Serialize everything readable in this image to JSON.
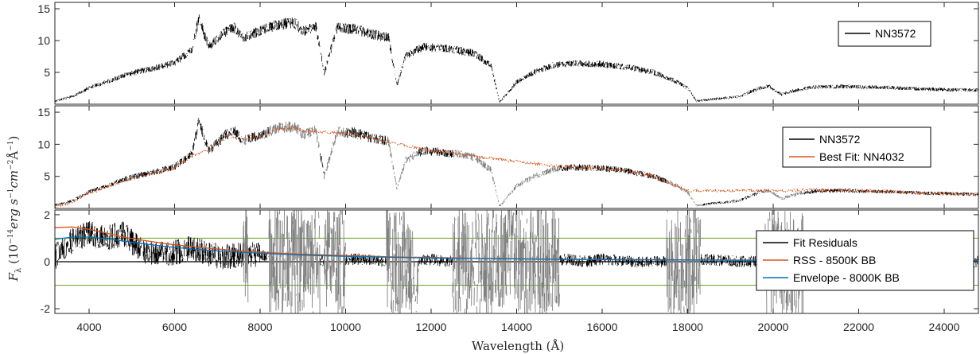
{
  "chart_data": {
    "type": "line",
    "x_axis": {
      "label": "Wavelength (Å)",
      "range": [
        3200,
        24800
      ],
      "ticks": [
        4000,
        6000,
        8000,
        10000,
        12000,
        14000,
        16000,
        18000,
        20000,
        22000,
        24000
      ]
    },
    "y_axis_label": "F_λ (10^-14 erg s^-1 cm^-2 Å^-1)",
    "y_axis_label_parts": {
      "symbol": "F",
      "subscript": "λ",
      "open": "(10",
      "exp1": "−14",
      "erg": "erg s",
      "exp2": "−1",
      "cm": "cm",
      "exp3": "−2",
      "ang": "Å",
      "exp4": "−1",
      "close": ")"
    },
    "panels": [
      {
        "ylim": [
          0,
          16
        ],
        "yticks": [
          5,
          10,
          15
        ],
        "legend_position": "top-right",
        "series": [
          {
            "name": "NN3572",
            "color": "#000000",
            "x": [
              3200,
              3600,
              4000,
              4400,
              4800,
              5200,
              5600,
              6000,
              6400,
              6563,
              6800,
              7200,
              7400,
              7600,
              8000,
              8400,
              8800,
              9000,
              9300,
              9500,
              9800,
              10200,
              10600,
              11000,
              11200,
              11400,
              11800,
              12200,
              12600,
              13000,
              13400,
              13600,
              14000,
              14400,
              14800,
              15000,
              15400,
              16000,
              16600,
              17200,
              17600,
              18000,
              18200,
              18600,
              19200,
              19700,
              19900,
              20200,
              20400,
              20600,
              21000,
              21600,
              22200,
              22800,
              23400,
              24000,
              24800
            ],
            "y": [
              0.5,
              1.2,
              2.6,
              3.5,
              4.5,
              5.2,
              5.8,
              6.5,
              8.5,
              13.5,
              9.0,
              11.5,
              12.0,
              10.5,
              11.5,
              12.5,
              12.8,
              11.5,
              12.2,
              5.0,
              12.0,
              11.8,
              11.0,
              10.5,
              3.0,
              7.5,
              9.0,
              8.8,
              8.5,
              8.0,
              6.0,
              0.3,
              3.5,
              5.0,
              6.0,
              6.3,
              6.4,
              6.3,
              5.8,
              5.0,
              4.0,
              2.5,
              0.5,
              0.8,
              1.2,
              2.6,
              2.8,
              1.5,
              2.0,
              2.3,
              2.7,
              2.8,
              2.7,
              2.6,
              2.4,
              2.3,
              2.2
            ]
          }
        ]
      },
      {
        "ylim": [
          0,
          16
        ],
        "yticks": [
          5,
          10,
          15
        ],
        "legend_position": "top-right",
        "series": [
          {
            "name": "NN3572",
            "color": "#000000",
            "x": [
              3200,
              3600,
              4000,
              4400,
              4800,
              5200,
              5600,
              6000,
              6400,
              6563,
              6800,
              7200,
              7400,
              7600,
              8000,
              8400,
              8800,
              9000,
              9300,
              9500,
              9800,
              10200,
              10600,
              11000,
              11200,
              11400,
              11800,
              12200,
              12600,
              13000,
              13400,
              13600,
              14000,
              14400,
              14800,
              15000,
              15400,
              16000,
              16600,
              17200,
              17600,
              18000,
              18200,
              18600,
              19200,
              19700,
              19900,
              20200,
              20400,
              20600,
              21000,
              21600,
              22200,
              22800,
              23400,
              24000,
              24800
            ],
            "y": [
              0.5,
              1.2,
              2.6,
              3.5,
              4.5,
              5.2,
              5.8,
              6.5,
              8.5,
              13.5,
              9.0,
              11.5,
              12.0,
              10.5,
              11.5,
              12.5,
              12.8,
              11.5,
              12.2,
              5.0,
              12.0,
              11.8,
              11.0,
              10.5,
              3.0,
              7.5,
              9.0,
              8.8,
              8.5,
              8.0,
              6.0,
              0.3,
              3.5,
              5.0,
              6.0,
              6.3,
              6.4,
              6.3,
              5.8,
              5.0,
              4.0,
              2.5,
              0.5,
              0.8,
              1.2,
              2.6,
              2.8,
              1.5,
              2.0,
              2.3,
              2.7,
              2.8,
              2.7,
              2.6,
              2.4,
              2.3,
              2.2
            ]
          },
          {
            "name": "Best Fit: NN4032",
            "color": "#d95319",
            "x": [
              3200,
              3600,
              4000,
              4400,
              4800,
              5200,
              5600,
              6000,
              6400,
              6800,
              7200,
              7600,
              8000,
              8400,
              8800,
              9000,
              10200,
              10600,
              11800,
              12200,
              12600,
              13000,
              15000,
              15400,
              16000,
              16600,
              17200,
              18000,
              20000,
              21000,
              21600,
              22200,
              22800,
              23400,
              24000,
              24800
            ],
            "y": [
              0.3,
              1.0,
              2.4,
              3.3,
              4.3,
              5.0,
              5.6,
              6.3,
              8.2,
              9.2,
              11.3,
              10.8,
              11.3,
              12.3,
              12.6,
              12.1,
              11.6,
              11.0,
              9.2,
              8.9,
              8.6,
              8.1,
              6.5,
              6.4,
              6.2,
              5.8,
              5.0,
              2.8,
              2.8,
              2.9,
              2.8,
              2.7,
              2.6,
              2.4,
              2.3,
              2.1
            ]
          }
        ]
      },
      {
        "ylim": [
          -2.2,
          2.2
        ],
        "yticks": [
          -2,
          0,
          2
        ],
        "legend_position": "bottom-right",
        "hlines": [
          {
            "y": 1.0,
            "color": "#77ac30"
          },
          {
            "y": -1.0,
            "color": "#77ac30"
          },
          {
            "y": 0.0,
            "color": "#000000"
          }
        ],
        "series": [
          {
            "name": "Fit Residuals",
            "color": "#000000",
            "x": [
              3200,
              3600,
              4000,
              4400,
              4800,
              5200,
              5600,
              6000,
              6400,
              6800,
              7200,
              7600,
              8000,
              8400,
              8800,
              9200,
              9600,
              10000,
              10400,
              10800,
              11200,
              11600,
              12000,
              12400,
              12800,
              13200,
              13600,
              14000,
              14400,
              14800,
              15200,
              15600,
              16000,
              16800,
              17600,
              18400,
              19200,
              20000,
              20800,
              21600,
              22400,
              23200,
              24000,
              24800
            ],
            "y": [
              0.2,
              0.9,
              1.2,
              1.0,
              1.2,
              0.5,
              0.3,
              0.4,
              0.6,
              0.3,
              0.2,
              0.3,
              0.3,
              0.2,
              0.1,
              0.0,
              0.1,
              0.1,
              0.1,
              0.0,
              0.1,
              0.0,
              0.1,
              0.0,
              0.1,
              0.0,
              0.0,
              0.1,
              0.0,
              0.1,
              0.1,
              0.0,
              0.1,
              0.0,
              0.0,
              0.1,
              0.0,
              0.0,
              0.0,
              0.0,
              0.0,
              0.1,
              0.0,
              0.0
            ]
          },
          {
            "name": "RSS - 8500K BB",
            "color": "#d95319",
            "x": [
              3200,
              3600,
              4000,
              4400,
              4800,
              5200,
              5600,
              6000,
              6500,
              7000,
              7500,
              8000,
              8500,
              9000,
              10000,
              11000,
              12000,
              13000,
              14000,
              15000,
              16000,
              17000,
              18000,
              19000,
              20000,
              21000,
              22000,
              23000,
              24000,
              24800
            ],
            "y": [
              1.45,
              1.48,
              1.38,
              1.22,
              1.05,
              0.93,
              0.82,
              0.72,
              0.62,
              0.54,
              0.47,
              0.41,
              0.36,
              0.32,
              0.26,
              0.21,
              0.18,
              0.15,
              0.13,
              0.11,
              0.1,
              0.09,
              0.08,
              0.07,
              0.06,
              0.06,
              0.05,
              0.05,
              0.04,
              0.04
            ]
          },
          {
            "name": "Envelope - 8000K BB",
            "color": "#0072bd",
            "x": [
              3200,
              3600,
              4000,
              4400,
              4800,
              5200,
              5600,
              6000,
              6500,
              7000,
              7500,
              8000,
              8500,
              9000,
              10000,
              11000,
              12000,
              13000,
              14000,
              15000,
              16000,
              17000,
              18000,
              19000,
              20000,
              21000,
              22000,
              23000,
              24000,
              24800
            ],
            "y": [
              0.95,
              1.05,
              1.05,
              0.98,
              0.88,
              0.78,
              0.69,
              0.61,
              0.53,
              0.46,
              0.41,
              0.36,
              0.32,
              0.28,
              0.23,
              0.19,
              0.16,
              0.14,
              0.12,
              0.1,
              0.09,
              0.08,
              0.07,
              0.06,
              0.06,
              0.05,
              0.05,
              0.04,
              0.04,
              0.04
            ]
          }
        ]
      }
    ]
  },
  "colors": {
    "gray_mask": "#808080",
    "axis": "#262626"
  }
}
